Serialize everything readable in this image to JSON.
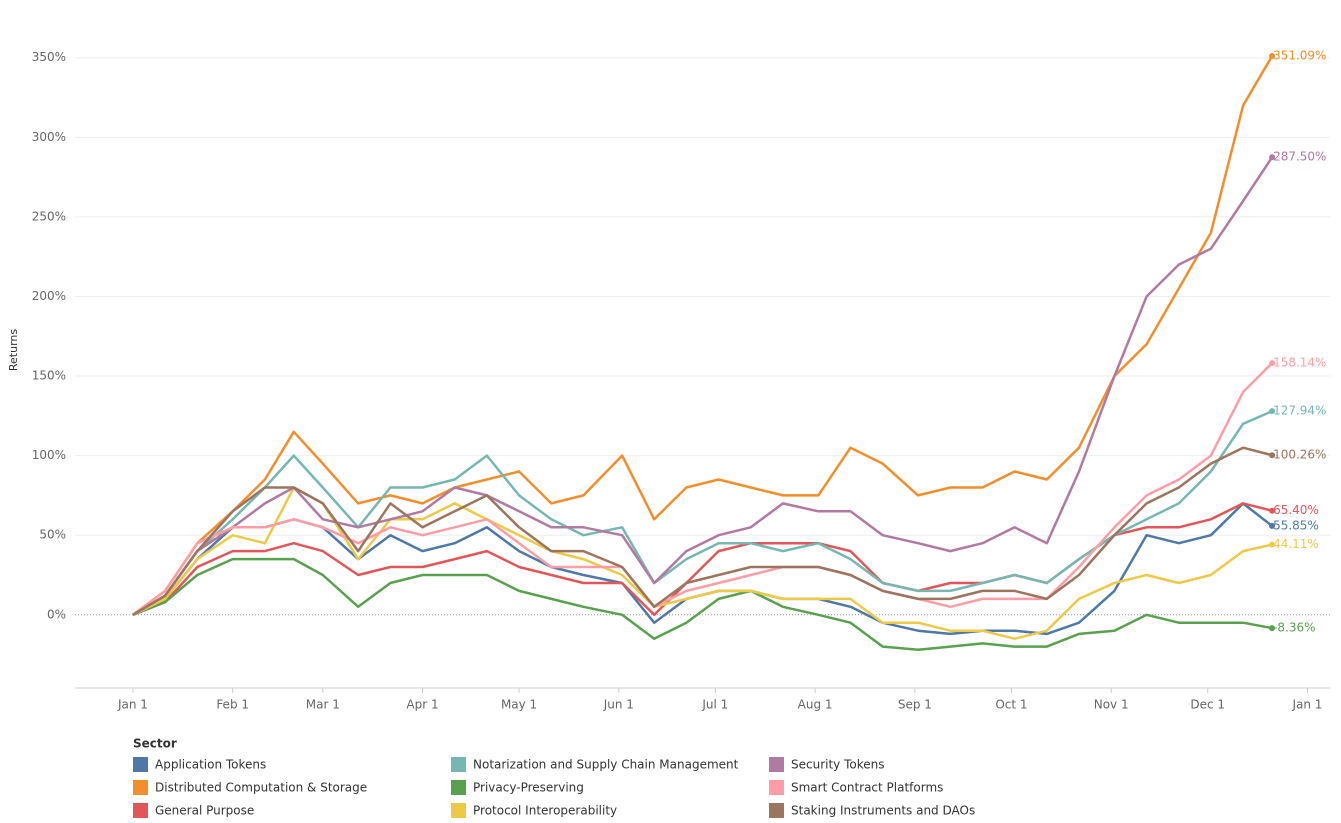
{
  "chart_data": {
    "type": "line",
    "y_label": "Returns",
    "legend_title": "Sector",
    "x": [
      0,
      10,
      20,
      31,
      41,
      50,
      59,
      70,
      80,
      90,
      100,
      110,
      120,
      130,
      140,
      152,
      162,
      172,
      182,
      192,
      202,
      213,
      223,
      233,
      244,
      254,
      264,
      274,
      284,
      294,
      305,
      315,
      325,
      335,
      345,
      354
    ],
    "xlim": [
      -18,
      372
    ],
    "xticks": [
      {
        "value": 0,
        "label": "Jan 1"
      },
      {
        "value": 31,
        "label": "Feb 1"
      },
      {
        "value": 59,
        "label": "Mar 1"
      },
      {
        "value": 90,
        "label": "Apr 1"
      },
      {
        "value": 120,
        "label": "May 1"
      },
      {
        "value": 151,
        "label": "Jun 1"
      },
      {
        "value": 181,
        "label": "Jul 1"
      },
      {
        "value": 212,
        "label": "Aug 1"
      },
      {
        "value": 243,
        "label": "Sep 1"
      },
      {
        "value": 273,
        "label": "Oct 1"
      },
      {
        "value": 304,
        "label": "Nov 1"
      },
      {
        "value": 334,
        "label": "Dec 1"
      },
      {
        "value": 365,
        "label": "Jan 1"
      }
    ],
    "ylim": [
      -46,
      380
    ],
    "yticks": [
      {
        "value": 0,
        "label": "0%"
      },
      {
        "value": 50,
        "label": "50%"
      },
      {
        "value": 100,
        "label": "100%"
      },
      {
        "value": 150,
        "label": "150%"
      },
      {
        "value": 200,
        "label": "200%"
      },
      {
        "value": 250,
        "label": "250%"
      },
      {
        "value": 300,
        "label": "300%"
      },
      {
        "value": 350,
        "label": "350%"
      }
    ],
    "grid": true,
    "series": [
      {
        "name": "Application Tokens",
        "color": "#4e79a7",
        "values": [
          0,
          10,
          35,
          55,
          55,
          60,
          55,
          35,
          50,
          40,
          45,
          55,
          40,
          30,
          25,
          20,
          -5,
          10,
          15,
          15,
          10,
          10,
          5,
          -5,
          -10,
          -12,
          -10,
          -10,
          -12,
          -5,
          15,
          50,
          45,
          50,
          70,
          55.85
        ],
        "value_labels": [
          null,
          null,
          null,
          null,
          null,
          null,
          null,
          null,
          null,
          null,
          null,
          null,
          null,
          null,
          null,
          null,
          null,
          null,
          null,
          null,
          null,
          null,
          null,
          null,
          null,
          null,
          null,
          null,
          null,
          null,
          null,
          null,
          null,
          null,
          null,
          "55.85%"
        ]
      },
      {
        "name": "Distributed Computation & Storage",
        "color": "#f28e2b",
        "values": [
          0,
          15,
          45,
          65,
          85,
          115,
          95,
          70,
          75,
          70,
          80,
          85,
          90,
          70,
          75,
          100,
          60,
          80,
          85,
          80,
          75,
          75,
          105,
          95,
          75,
          80,
          80,
          90,
          85,
          105,
          150,
          170,
          205,
          240,
          320,
          351.09
        ],
        "value_labels": [
          null,
          null,
          null,
          null,
          null,
          null,
          null,
          null,
          null,
          null,
          null,
          null,
          null,
          null,
          null,
          null,
          null,
          null,
          null,
          null,
          null,
          null,
          null,
          null,
          null,
          null,
          null,
          null,
          null,
          null,
          null,
          null,
          null,
          null,
          null,
          "351.09%"
        ]
      },
      {
        "name": "General Purpose",
        "color": "#e15759",
        "values": [
          0,
          8,
          30,
          40,
          40,
          45,
          40,
          25,
          30,
          30,
          35,
          40,
          30,
          25,
          20,
          20,
          0,
          20,
          40,
          45,
          45,
          45,
          40,
          20,
          15,
          20,
          20,
          25,
          20,
          35,
          50,
          55,
          55,
          60,
          70,
          65.4
        ],
        "value_labels": [
          null,
          null,
          null,
          null,
          null,
          null,
          null,
          null,
          null,
          null,
          null,
          null,
          null,
          null,
          null,
          null,
          null,
          null,
          null,
          null,
          null,
          null,
          null,
          null,
          null,
          null,
          null,
          null,
          null,
          null,
          null,
          null,
          null,
          null,
          null,
          "65.40%"
        ]
      },
      {
        "name": "Notarization and Supply Chain Management",
        "color": "#76b7b2",
        "values": [
          0,
          12,
          40,
          60,
          80,
          100,
          80,
          55,
          80,
          80,
          85,
          100,
          75,
          60,
          50,
          55,
          20,
          35,
          45,
          45,
          40,
          45,
          35,
          20,
          15,
          15,
          20,
          25,
          20,
          35,
          50,
          60,
          70,
          90,
          120,
          127.94
        ],
        "value_labels": [
          null,
          null,
          null,
          null,
          null,
          null,
          null,
          null,
          null,
          null,
          null,
          null,
          null,
          null,
          null,
          null,
          null,
          null,
          null,
          null,
          null,
          null,
          null,
          null,
          null,
          null,
          null,
          null,
          null,
          null,
          null,
          null,
          null,
          null,
          null,
          "127.94%"
        ]
      },
      {
        "name": "Privacy-Preserving",
        "color": "#59a14f",
        "values": [
          0,
          8,
          25,
          35,
          35,
          35,
          25,
          5,
          20,
          25,
          25,
          25,
          15,
          10,
          5,
          0,
          -15,
          -5,
          10,
          15,
          5,
          0,
          -5,
          -20,
          -22,
          -20,
          -18,
          -20,
          -20,
          -12,
          -10,
          0,
          -5,
          -5,
          -5,
          -8.36
        ],
        "value_labels": [
          null,
          null,
          null,
          null,
          null,
          null,
          null,
          null,
          null,
          null,
          null,
          null,
          null,
          null,
          null,
          null,
          null,
          null,
          null,
          null,
          null,
          null,
          null,
          null,
          null,
          null,
          null,
          null,
          null,
          null,
          null,
          null,
          null,
          null,
          null,
          "-8.36%"
        ]
      },
      {
        "name": "Protocol Interoperability",
        "color": "#edc948",
        "values": [
          0,
          10,
          35,
          50,
          45,
          80,
          70,
          35,
          60,
          60,
          70,
          60,
          50,
          40,
          35,
          25,
          5,
          10,
          15,
          15,
          10,
          10,
          10,
          -5,
          -5,
          -10,
          -10,
          -15,
          -10,
          10,
          20,
          25,
          20,
          25,
          40,
          44.11
        ],
        "value_labels": [
          null,
          null,
          null,
          null,
          null,
          null,
          null,
          null,
          null,
          null,
          null,
          null,
          null,
          null,
          null,
          null,
          null,
          null,
          null,
          null,
          null,
          null,
          null,
          null,
          null,
          null,
          null,
          null,
          null,
          null,
          null,
          null,
          null,
          null,
          null,
          "44.11%"
        ]
      },
      {
        "name": "Security Tokens",
        "color": "#b07aa1",
        "values": [
          0,
          12,
          40,
          55,
          70,
          80,
          60,
          55,
          60,
          65,
          80,
          75,
          65,
          55,
          55,
          50,
          20,
          40,
          50,
          55,
          70,
          65,
          65,
          50,
          45,
          40,
          45,
          55,
          45,
          90,
          150,
          200,
          220,
          230,
          260,
          287.5
        ],
        "value_labels": [
          null,
          null,
          null,
          null,
          null,
          null,
          null,
          null,
          null,
          null,
          null,
          null,
          null,
          null,
          null,
          null,
          null,
          null,
          null,
          null,
          null,
          null,
          null,
          null,
          null,
          null,
          null,
          null,
          null,
          null,
          null,
          null,
          null,
          null,
          null,
          "287.50%"
        ]
      },
      {
        "name": "Smart Contract Platforms",
        "color": "#ff9da7",
        "values": [
          0,
          15,
          45,
          55,
          55,
          60,
          55,
          45,
          55,
          50,
          55,
          60,
          45,
          30,
          30,
          30,
          5,
          15,
          20,
          25,
          30,
          30,
          25,
          15,
          10,
          5,
          10,
          10,
          10,
          30,
          55,
          75,
          85,
          100,
          140,
          158.14
        ],
        "value_labels": [
          null,
          null,
          null,
          null,
          null,
          null,
          null,
          null,
          null,
          null,
          null,
          null,
          null,
          null,
          null,
          null,
          null,
          null,
          null,
          null,
          null,
          null,
          null,
          null,
          null,
          null,
          null,
          null,
          null,
          null,
          null,
          null,
          null,
          null,
          null,
          "158.14%"
        ]
      },
      {
        "name": "Staking Instruments and DAOs",
        "color": "#9c755f",
        "values": [
          0,
          12,
          40,
          65,
          80,
          80,
          70,
          40,
          70,
          55,
          65,
          75,
          55,
          40,
          40,
          30,
          5,
          20,
          25,
          30,
          30,
          30,
          25,
          15,
          10,
          10,
          15,
          15,
          10,
          25,
          50,
          70,
          80,
          95,
          105,
          100.26
        ],
        "value_labels": [
          null,
          null,
          null,
          null,
          null,
          null,
          null,
          null,
          null,
          null,
          null,
          null,
          null,
          null,
          null,
          null,
          null,
          null,
          null,
          null,
          null,
          null,
          null,
          null,
          null,
          null,
          null,
          null,
          null,
          null,
          null,
          null,
          null,
          null,
          null,
          "100.26%"
        ]
      }
    ]
  }
}
